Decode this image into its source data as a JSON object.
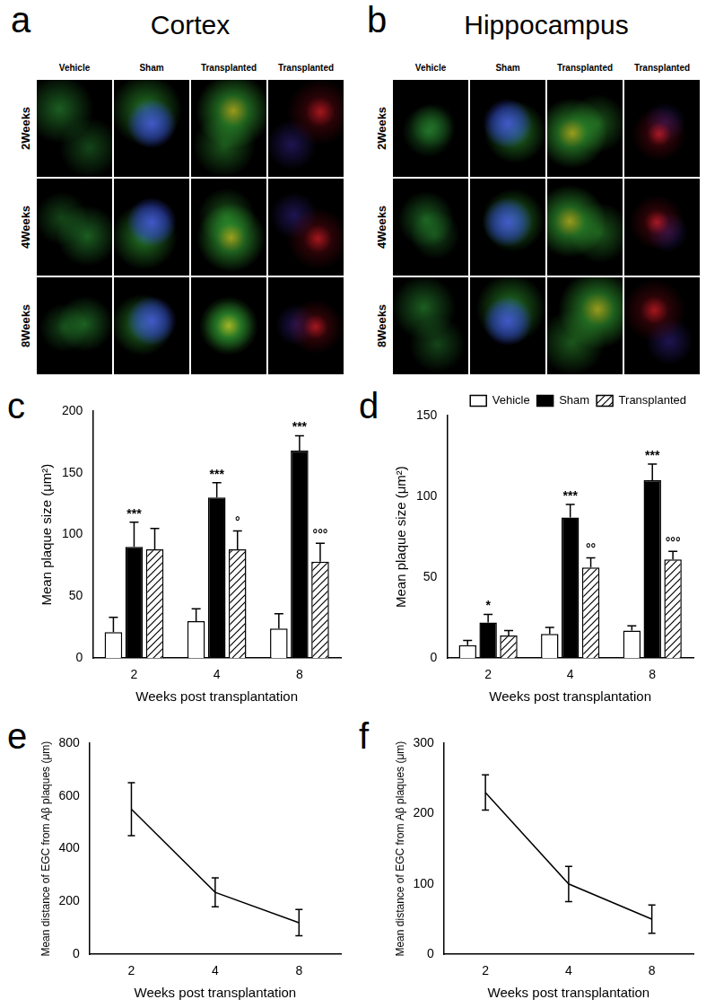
{
  "image_panels": [
    {
      "letter": "a",
      "title": "Cortex",
      "columns": [
        "Vehicle",
        "Sham",
        "Transplanted",
        "Transplanted"
      ],
      "rows": [
        "2Weeks",
        "4Weeks",
        "8Weeks"
      ]
    },
    {
      "letter": "b",
      "title": "Hippocampus",
      "columns": [
        "Vehicle",
        "Sham",
        "Transplanted",
        "Transplanted"
      ],
      "rows": [
        "2Weeks",
        "4Weeks",
        "8Weeks"
      ]
    }
  ],
  "chart_data": [
    {
      "panel": "c",
      "type": "bar",
      "categories": [
        "2",
        "4",
        "8"
      ],
      "x_label": "Weeks post transplantation",
      "y_label": "Mean plaque size (μm²)",
      "ylim": [
        0,
        200
      ],
      "yticks": [
        0,
        50,
        100,
        150,
        200
      ],
      "grid": false,
      "series": [
        {
          "name": "Vehicle",
          "color": "#ffffff",
          "values": [
            21,
            30,
            24
          ],
          "errors": [
            12,
            10,
            12
          ]
        },
        {
          "name": "Sham",
          "color": "#000000",
          "values": [
            90,
            130,
            168
          ],
          "errors": [
            20,
            12,
            12
          ]
        },
        {
          "name": "Transplanted",
          "color": "#ffffff",
          "values": [
            88,
            88,
            78
          ],
          "errors": [
            17,
            15,
            15
          ]
        }
      ],
      "annotations": [
        {
          "category": "2",
          "series": "Sham",
          "text": "***"
        },
        {
          "category": "4",
          "series": "Sham",
          "text": "***"
        },
        {
          "category": "8",
          "series": "Sham",
          "text": "***"
        },
        {
          "category": "4",
          "series": "Transplanted",
          "text": "°"
        },
        {
          "category": "8",
          "series": "Transplanted",
          "text": "°°°"
        }
      ]
    },
    {
      "panel": "d",
      "type": "bar",
      "categories": [
        "2",
        "4",
        "8"
      ],
      "x_label": "Weeks post transplantation",
      "y_label": "Mean plaque size (μm²)",
      "ylim": [
        0,
        150
      ],
      "yticks": [
        0,
        50,
        100,
        150
      ],
      "grid": false,
      "legend": "top right",
      "series": [
        {
          "name": "Vehicle",
          "color": "#ffffff",
          "values": [
            8,
            15,
            17
          ],
          "errors": [
            3,
            4,
            3
          ]
        },
        {
          "name": "Sham",
          "color": "#000000",
          "values": [
            22,
            87,
            110
          ],
          "errors": [
            5,
            8,
            10
          ]
        },
        {
          "name": "Transplanted",
          "color": "#ffffff",
          "values": [
            14,
            56,
            61
          ],
          "errors": [
            3,
            6,
            5
          ]
        }
      ],
      "annotations": [
        {
          "category": "2",
          "series": "Sham",
          "text": "*"
        },
        {
          "category": "4",
          "series": "Sham",
          "text": "***"
        },
        {
          "category": "8",
          "series": "Sham",
          "text": "***"
        },
        {
          "category": "4",
          "series": "Transplanted",
          "text": "°°"
        },
        {
          "category": "8",
          "series": "Transplanted",
          "text": "°°°"
        }
      ]
    },
    {
      "panel": "e",
      "type": "line",
      "categories": [
        "2",
        "4",
        "8"
      ],
      "x_label": "Weeks post transplantation",
      "y_label": "Mean distance of EGC from Aβ plaques (μm)",
      "ylim": [
        0,
        800
      ],
      "yticks": [
        0,
        200,
        400,
        600,
        800
      ],
      "grid": false,
      "color": "#000000",
      "marker": "none",
      "values": [
        550,
        235,
        120
      ],
      "errors": [
        100,
        55,
        50
      ]
    },
    {
      "panel": "f",
      "type": "line",
      "categories": [
        "2",
        "4",
        "8"
      ],
      "x_label": "Weeks post transplantation",
      "y_label": "Mean distance of EGC from Aβ plaques (μm)",
      "ylim": [
        0,
        300
      ],
      "yticks": [
        0,
        100,
        200,
        300
      ],
      "grid": false,
      "color": "#000000",
      "marker": "none",
      "values": [
        230,
        100,
        50
      ],
      "errors": [
        25,
        25,
        20
      ]
    }
  ]
}
